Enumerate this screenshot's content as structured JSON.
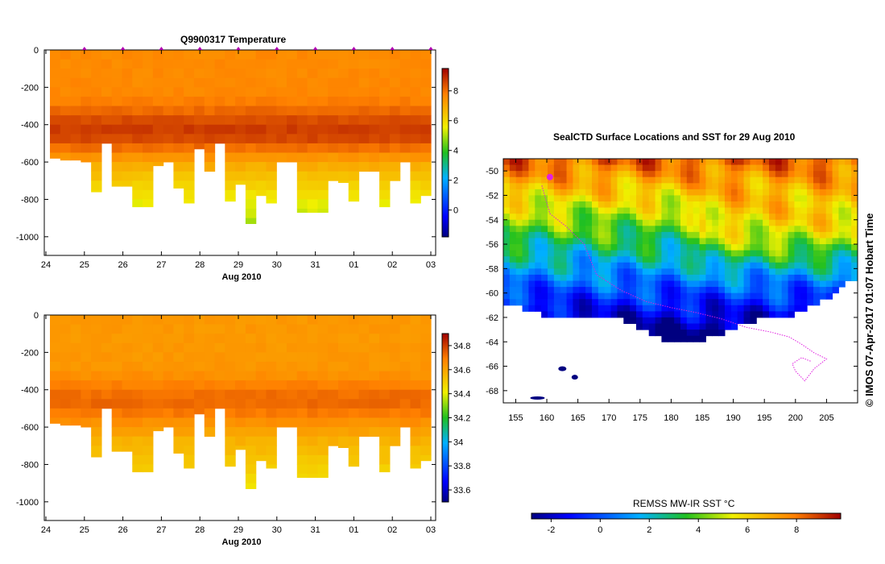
{
  "chart_data": [
    {
      "type": "heatmap",
      "title": "Q9900317  Temperature",
      "xlabel": "Aug 2010",
      "ylabel": "",
      "x_ticks": [
        "24",
        "25",
        "26",
        "27",
        "28",
        "29",
        "30",
        "31",
        "01",
        "02",
        "03"
      ],
      "y_ticks": [
        0,
        -200,
        -400,
        -600,
        -800,
        -1000
      ],
      "ylim": [
        -1100,
        0
      ],
      "colorbar_ticks": [
        0,
        2,
        4,
        6,
        8
      ],
      "colorbar_range": [
        -1.8,
        9.5
      ],
      "profile_bottom_depths": [
        -580,
        -590,
        -590,
        -600,
        -760,
        -500,
        -730,
        -730,
        -840,
        -840,
        -620,
        -600,
        -740,
        -820,
        -530,
        -650,
        -500,
        -810,
        -720,
        -930,
        -780,
        -820,
        -600,
        -600,
        -870,
        -870,
        -870,
        -700,
        -710,
        -810,
        -650,
        -650,
        -840,
        -700,
        -600,
        -820,
        -780
      ],
      "profile_markers": [
        "25",
        "26",
        "27",
        "28",
        "29",
        "30",
        "31",
        "01",
        "02",
        "03"
      ]
    },
    {
      "type": "heatmap",
      "title": "",
      "xlabel": "Aug 2010",
      "ylabel": "",
      "x_ticks": [
        "24",
        "25",
        "26",
        "27",
        "28",
        "29",
        "30",
        "31",
        "01",
        "02",
        "03"
      ],
      "y_ticks": [
        0,
        -200,
        -400,
        -600,
        -800,
        -1000
      ],
      "ylim": [
        -1100,
        0
      ],
      "colorbar_ticks": [
        33.6,
        33.8,
        34,
        34.2,
        34.4,
        34.6,
        34.8
      ],
      "colorbar_labels": [
        "33.6",
        "33.8",
        "34",
        "34.2",
        "34.4",
        "34.6",
        "34.8"
      ],
      "colorbar_range": [
        33.5,
        34.9
      ]
    },
    {
      "type": "heatmap",
      "title": "SealCTD Surface Locations and SST for 29 Aug 2010",
      "xlabel": "",
      "ylabel": "",
      "x_ticks": [
        155,
        160,
        165,
        170,
        175,
        180,
        185,
        190,
        195,
        200,
        205
      ],
      "y_ticks": [
        -50,
        -52,
        -54,
        -56,
        -58,
        -60,
        -62,
        -64,
        -66,
        -68
      ],
      "xlim": [
        153,
        210
      ],
      "ylim": [
        -69,
        -49
      ],
      "colorbar_title": "REMSS MW-IR SST °C",
      "colorbar_ticks": [
        -2,
        0,
        2,
        4,
        6,
        8
      ],
      "colorbar_range": [
        -2.8,
        9.8
      ],
      "track_points": [
        [
          159.2,
          -51.2
        ],
        [
          160.5,
          -53.5
        ],
        [
          163,
          -54.5
        ],
        [
          166,
          -56
        ],
        [
          168,
          -58.5
        ],
        [
          172,
          -59.8
        ],
        [
          176,
          -60.7
        ],
        [
          180,
          -61.2
        ],
        [
          184,
          -61.6
        ],
        [
          188,
          -62.1
        ],
        [
          192,
          -62.8
        ],
        [
          196,
          -63.2
        ],
        [
          199,
          -63.6
        ],
        [
          201,
          -64.2
        ],
        [
          203,
          -64.9
        ],
        [
          205,
          -65.4
        ],
        [
          203,
          -66.2
        ],
        [
          201.5,
          -67.2
        ],
        [
          200,
          -66.4
        ],
        [
          199.5,
          -65.8
        ],
        [
          201,
          -65.3
        ],
        [
          202.5,
          -65.6
        ]
      ],
      "credit": "© IMOS 07-Apr-2017 01:07 Hobart Time"
    }
  ],
  "colors": {
    "track": "#e020e0",
    "marker": "#b000b0",
    "land": "#ffffff"
  }
}
